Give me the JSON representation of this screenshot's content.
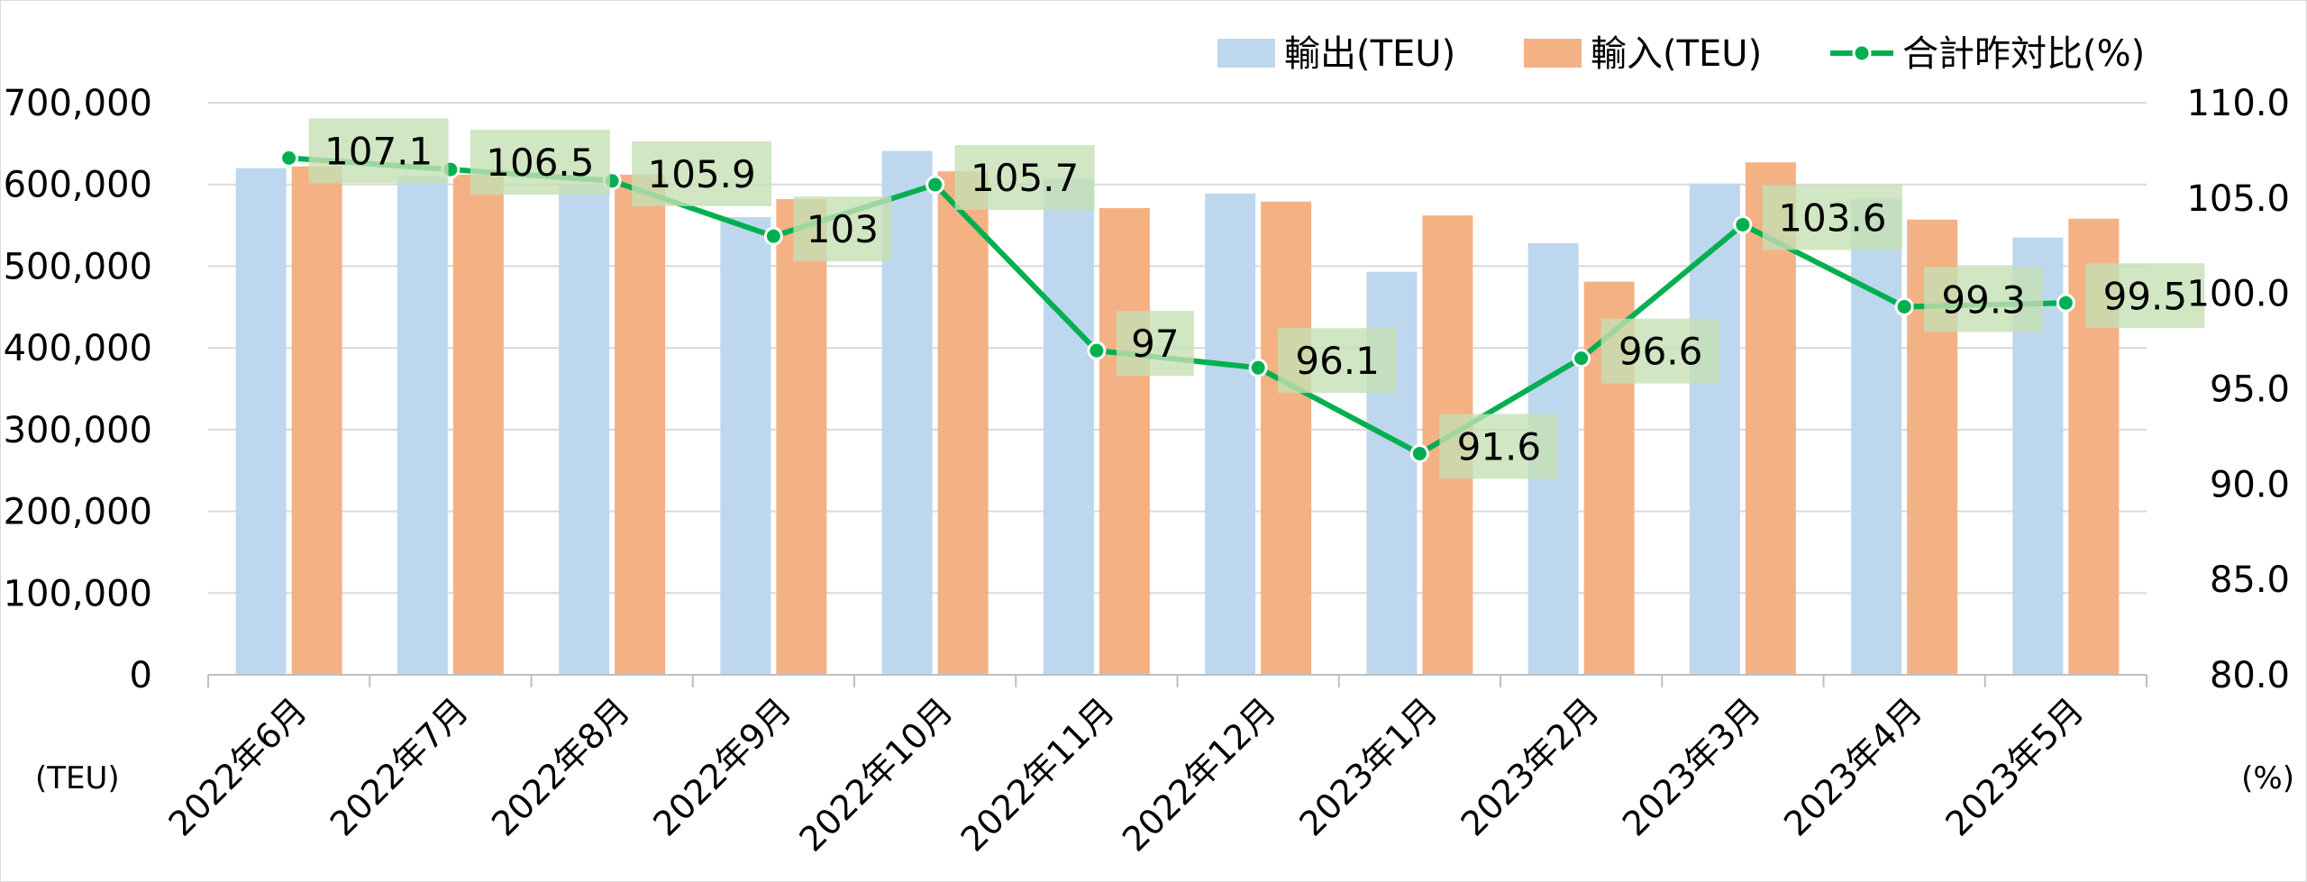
{
  "chart_data": {
    "type": "bar",
    "combo": "bar+line",
    "categories": [
      "2022年6月",
      "2022年7月",
      "2022年8月",
      "2022年9月",
      "2022年10月",
      "2022年11月",
      "2022年12月",
      "2023年1月",
      "2023年2月",
      "2023年3月",
      "2023年4月",
      "2023年5月"
    ],
    "series": [
      {
        "name": "輸出(TEU)",
        "type": "bar",
        "axis": "left",
        "color": "#bdd7ee",
        "values": [
          620000,
          610000,
          600000,
          560000,
          641000,
          607000,
          589000,
          493000,
          528000,
          601000,
          582000,
          535000
        ]
      },
      {
        "name": "輸入(TEU)",
        "type": "bar",
        "axis": "left",
        "color": "#f4b183",
        "values": [
          622000,
          612000,
          612000,
          582000,
          616000,
          571000,
          579000,
          562000,
          481000,
          627000,
          557000,
          558000
        ]
      },
      {
        "name": "合計昨対比(%)",
        "type": "line",
        "axis": "right",
        "color": "#00b050",
        "values": [
          107.1,
          106.5,
          105.9,
          103,
          105.7,
          97,
          96.1,
          91.6,
          96.6,
          103.6,
          99.3,
          99.5
        ],
        "labels": [
          "107.1",
          "106.5",
          "105.9",
          "103",
          "105.7",
          "97",
          "96.1",
          "91.6",
          "96.6",
          "103.6",
          "99.3",
          "99.5"
        ]
      }
    ],
    "y_left": {
      "min": 0,
      "max": 700000,
      "step": 100000,
      "ticks": [
        "0",
        "100,000",
        "200,000",
        "300,000",
        "400,000",
        "500,000",
        "600,000",
        "700,000"
      ],
      "unit": "(TEU)"
    },
    "y_right": {
      "min": 80,
      "max": 110,
      "step": 5,
      "ticks": [
        "80.0",
        "85.0",
        "90.0",
        "95.0",
        "100.0",
        "105.0",
        "110.0"
      ],
      "unit": "(%)"
    },
    "grid": true,
    "legend_position": "top-right",
    "data_label_bg": "#c5e0b4",
    "gridline_color": "#d9d9d9"
  }
}
